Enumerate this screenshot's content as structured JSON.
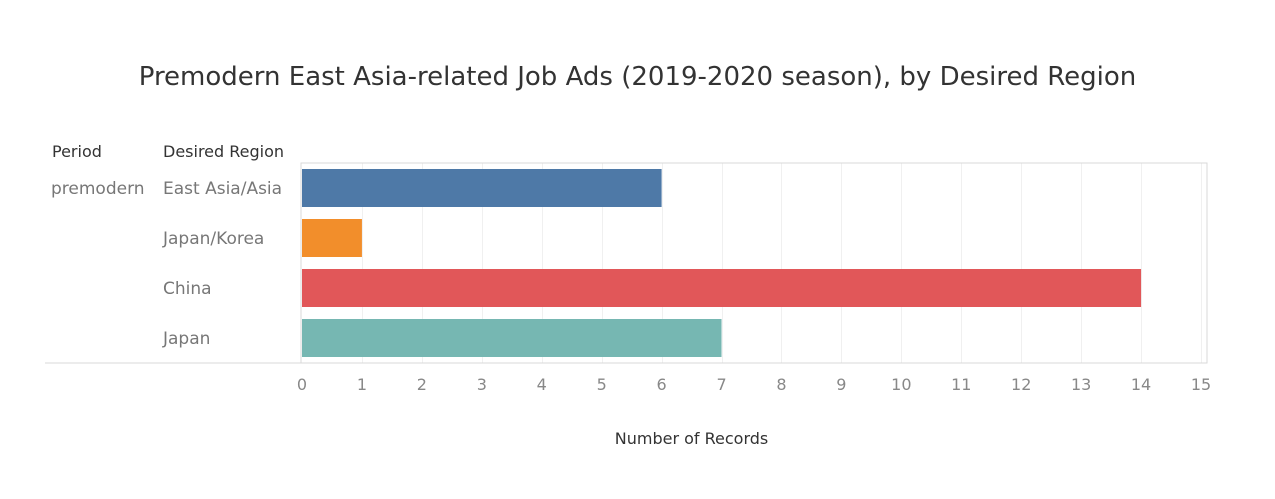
{
  "chart_data": {
    "type": "bar",
    "orientation": "horizontal",
    "title": "Premodern East Asia-related Job Ads (2019-2020 season), by Desired Region",
    "row_headers": [
      "Period",
      "Desired Region"
    ],
    "period": "premodern",
    "categories": [
      "East Asia/Asia",
      "Japan/Korea",
      "China",
      "Japan"
    ],
    "values": [
      6,
      1,
      14,
      7
    ],
    "colors": [
      "#4e79a7",
      "#f28e2b",
      "#e15759",
      "#76b7b2"
    ],
    "xlabel": "Number of Records",
    "xlim": [
      0,
      15
    ],
    "xticks": [
      0,
      1,
      2,
      3,
      4,
      5,
      6,
      7,
      8,
      9,
      10,
      11,
      12,
      13,
      14,
      15
    ],
    "grid": "vertical"
  }
}
